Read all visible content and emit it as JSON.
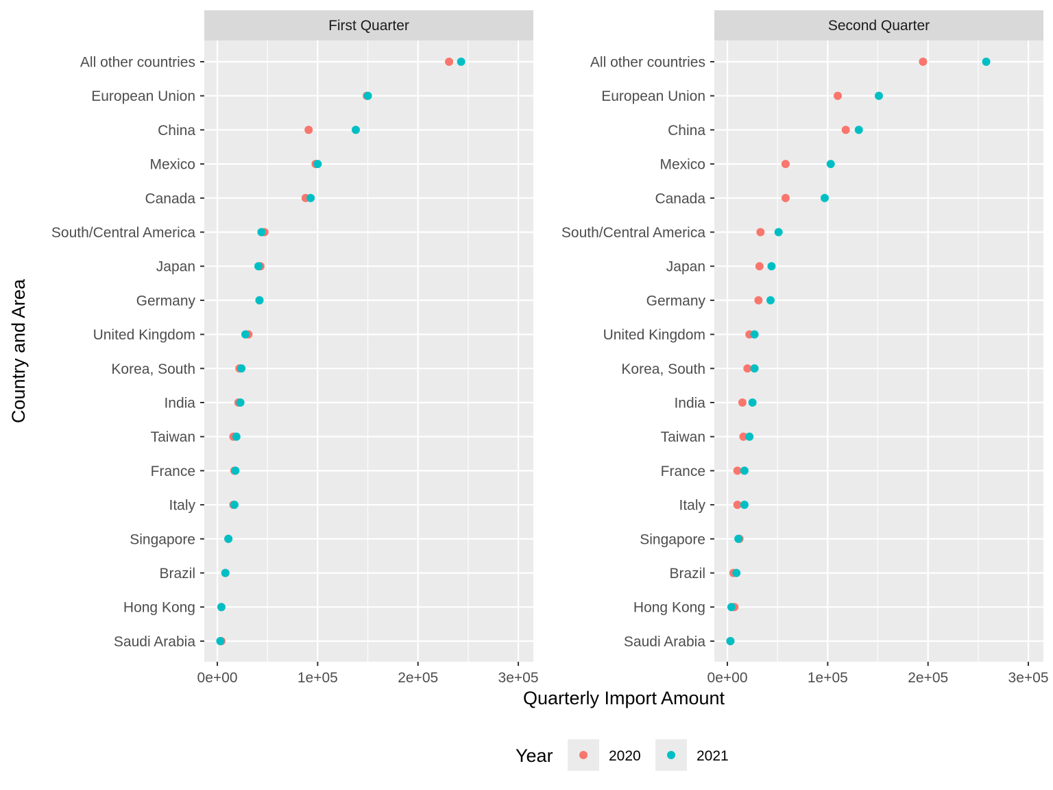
{
  "chart_data": {
    "type": "scatter",
    "facet_titles": [
      "First Quarter",
      "Second Quarter"
    ],
    "xlabel": "Quarterly Import Amount",
    "ylabel": "Country and Area",
    "xlim": [
      -13000,
      315000
    ],
    "x_ticks": [
      0,
      100000,
      200000,
      300000
    ],
    "x_tick_labels": [
      "0e+00",
      "1e+05",
      "2e+05",
      "3e+05"
    ],
    "categories": [
      "All other countries",
      "European Union",
      "China",
      "Mexico",
      "Canada",
      "South/Central America",
      "Japan",
      "Germany",
      "United Kingdom",
      "Korea, South",
      "India",
      "Taiwan",
      "France",
      "Italy",
      "Singapore",
      "Brazil",
      "Hong Kong",
      "Saudi Arabia"
    ],
    "legend": {
      "title": "Year",
      "position": "bottom",
      "entries": [
        "2020",
        "2021"
      ]
    },
    "grid": true,
    "colors": {
      "2020": "#F8766D",
      "2021": "#00BFC4",
      "panel": "#EBEBEB",
      "strip": "#D9D9D9",
      "grid": "#FFFFFF"
    },
    "panels": [
      {
        "title": "First Quarter",
        "series": [
          {
            "name": "2020",
            "values": [
              231000,
              149000,
              91000,
              98000,
              88000,
              47000,
              43000,
              42000,
              31000,
              22000,
              21000,
              16000,
              17000,
              16000,
              11000,
              8000,
              4000,
              4000
            ]
          },
          {
            "name": "2021",
            "values": [
              243000,
              150000,
              138000,
              100000,
              93000,
              44000,
              41000,
              42000,
              28000,
              24000,
              23000,
              19000,
              18000,
              17000,
              11000,
              8000,
              4000,
              3000
            ]
          }
        ]
      },
      {
        "title": "Second Quarter",
        "series": [
          {
            "name": "2020",
            "values": [
              195000,
              110000,
              118000,
              58000,
              58000,
              33000,
              32000,
              31000,
              22000,
              20000,
              15000,
              16000,
              10000,
              10000,
              12000,
              6000,
              7000,
              3000
            ]
          },
          {
            "name": "2021",
            "values": [
              258000,
              151000,
              131000,
              103000,
              97000,
              51000,
              44000,
              43000,
              27000,
              27000,
              25000,
              22000,
              17000,
              17000,
              11000,
              9000,
              4000,
              3000
            ]
          }
        ]
      }
    ]
  }
}
